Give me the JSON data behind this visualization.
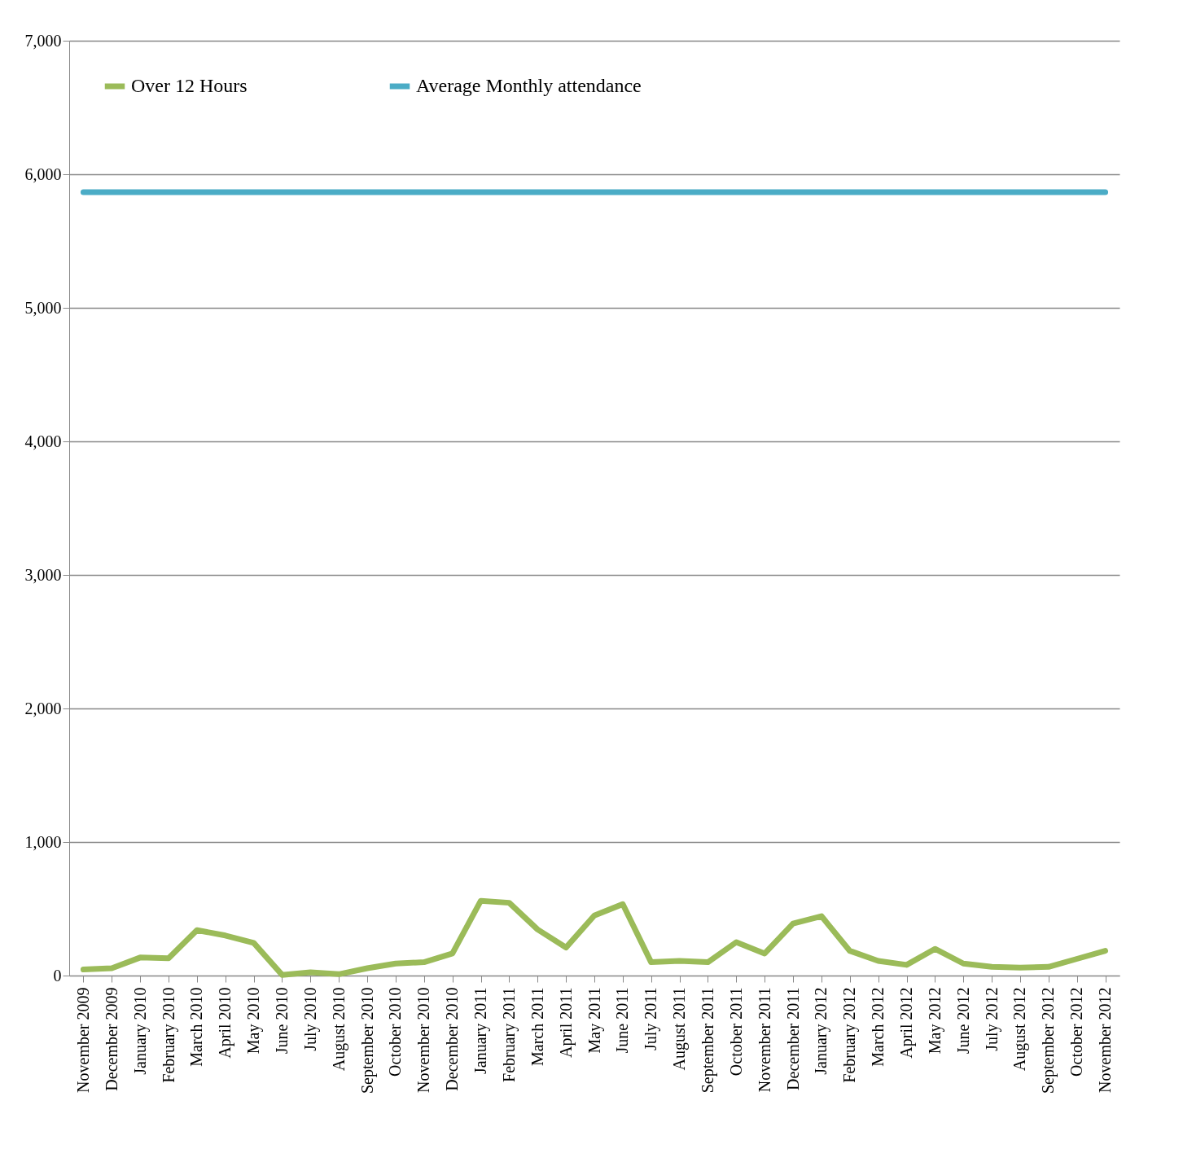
{
  "chart_data": {
    "type": "line",
    "categories": [
      "November 2009",
      "December 2009",
      "January 2010",
      "February 2010",
      "March 2010",
      "April 2010",
      "May 2010",
      "June 2010",
      "July 2010",
      "August 2010",
      "September 2010",
      "October 2010",
      "November 2010",
      "December 2010",
      "January 2011",
      "February 2011",
      "March 2011",
      "April 2011",
      "May 2011",
      "June 2011",
      "July 2011",
      "August 2011",
      "September 2011",
      "October 2011",
      "November 2011",
      "December 2011",
      "January 2012",
      "February 2012",
      "March 2012",
      "April 2012",
      "May 2012",
      "June 2012",
      "July 2012",
      "August 2012",
      "September 2012",
      "October 2012",
      "November 2012"
    ],
    "series": [
      {
        "name": "Over 12 Hours",
        "color": "#9bbb59",
        "values": [
          45,
          55,
          135,
          130,
          340,
          300,
          245,
          5,
          25,
          10,
          55,
          90,
          100,
          165,
          560,
          545,
          345,
          210,
          450,
          535,
          100,
          110,
          100,
          250,
          165,
          390,
          445,
          185,
          110,
          80,
          200,
          90,
          65,
          60,
          65,
          125,
          185
        ]
      },
      {
        "name": "Average Monthly attendance",
        "color": "#4bacc6",
        "values": [
          5866,
          5866,
          5866,
          5866,
          5866,
          5866,
          5866,
          5866,
          5866,
          5866,
          5866,
          5866,
          5866,
          5866,
          5866,
          5866,
          5866,
          5866,
          5866,
          5866,
          5866,
          5866,
          5866,
          5866,
          5866,
          5866,
          5866,
          5866,
          5866,
          5866,
          5866,
          5866,
          5866,
          5866,
          5866,
          5866,
          5866
        ]
      }
    ],
    "ylim": [
      0,
      7000
    ],
    "yticks": [
      {
        "value": 0,
        "label": "0"
      },
      {
        "value": 1000,
        "label": "1,000"
      },
      {
        "value": 2000,
        "label": "2,000"
      },
      {
        "value": 3000,
        "label": "3,000"
      },
      {
        "value": 4000,
        "label": "4,000"
      },
      {
        "value": 5000,
        "label": "5,000"
      },
      {
        "value": 6000,
        "label": "6,000"
      },
      {
        "value": 7000,
        "label": "7,000"
      }
    ],
    "grid": "y",
    "legend": "top left",
    "marker": "none",
    "line_style": "solid"
  }
}
